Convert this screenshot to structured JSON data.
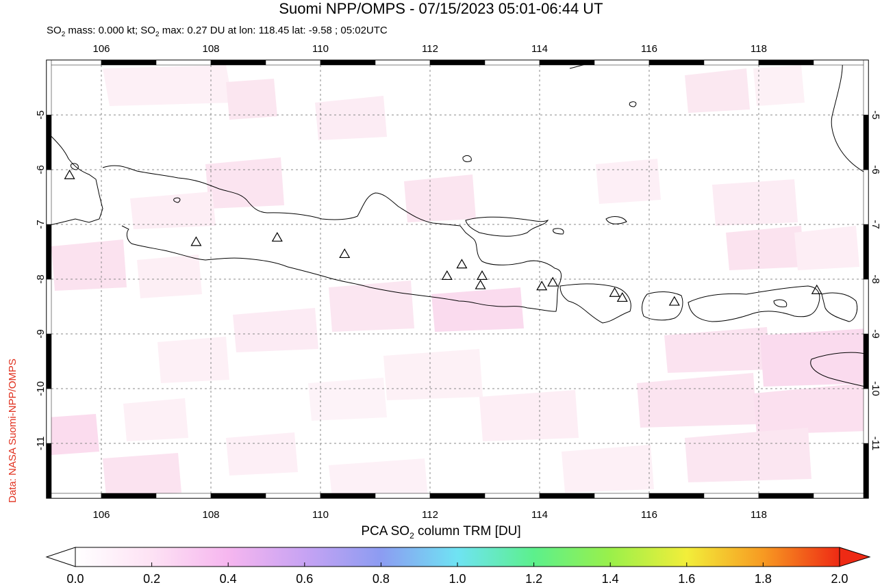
{
  "title": "Suomi NPP/OMPS - 07/15/2023 05:01-06:44 UT",
  "subtitle_parts": {
    "mass_prefix": "SO",
    "mass_sub": "2",
    "mass_rest": " mass: 0.000 kt; SO",
    "max_sub": "2",
    "max_rest": " max: 0.27 DU at lon: 118.45 lat: -9.58 ; 05:02UTC"
  },
  "credit": "Data: NASA Suomi-NPP/OMPS",
  "colorbar_title": {
    "prefix": "PCA SO",
    "sub": "2",
    "suffix": " column TRM [DU]"
  },
  "map": {
    "lon_range": [
      105.0,
      120.0
    ],
    "lat_range": [
      -12.0,
      -4.0
    ],
    "lon_ticks": [
      106,
      108,
      110,
      112,
      114,
      116,
      118
    ],
    "lat_ticks": [
      -5,
      -6,
      -7,
      -8,
      -9,
      -10,
      -11
    ],
    "lon_tick_labels": [
      "106",
      "108",
      "110",
      "112",
      "114",
      "116",
      "118"
    ],
    "lat_tick_labels": [
      "-5",
      "-6",
      "-7",
      "-8",
      "-9",
      "-10",
      "-11"
    ],
    "volcano_marker": "triangle-outline",
    "volcanoes": [
      {
        "lon": 105.42,
        "lat": -6.1
      },
      {
        "lon": 107.73,
        "lat": -7.32
      },
      {
        "lon": 109.21,
        "lat": -7.24
      },
      {
        "lon": 110.44,
        "lat": -7.54
      },
      {
        "lon": 112.31,
        "lat": -7.94
      },
      {
        "lon": 112.58,
        "lat": -7.73
      },
      {
        "lon": 112.95,
        "lat": -7.94
      },
      {
        "lon": 112.92,
        "lat": -8.11
      },
      {
        "lon": 114.04,
        "lat": -8.13
      },
      {
        "lon": 114.24,
        "lat": -8.06
      },
      {
        "lon": 115.37,
        "lat": -8.25
      },
      {
        "lon": 115.51,
        "lat": -8.34
      },
      {
        "lon": 116.46,
        "lat": -8.41
      },
      {
        "lon": 119.06,
        "lat": -8.2
      }
    ]
  },
  "colorbar": {
    "min": 0.0,
    "max": 2.0,
    "tick_labels": [
      "0.0",
      "0.2",
      "0.4",
      "0.6",
      "0.8",
      "1.0",
      "1.2",
      "1.4",
      "1.6",
      "1.8",
      "2.0"
    ],
    "colors": [
      "#ffffff",
      "#fde2f4",
      "#f6b6ef",
      "#c7a3f3",
      "#8c9cf2",
      "#6fe3f3",
      "#5cf08c",
      "#9af04a",
      "#f2ee3a",
      "#f79a22",
      "#ee2a14"
    ]
  }
}
